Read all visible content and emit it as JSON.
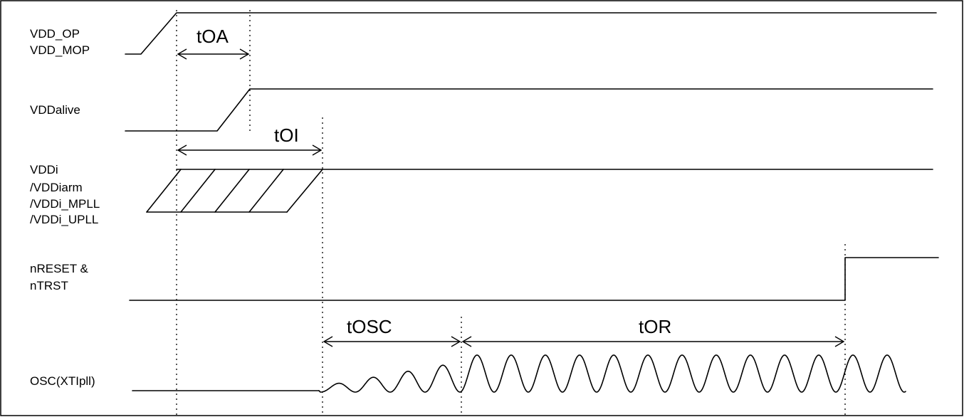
{
  "signals": {
    "vdd_op": {
      "lines": [
        "VDD_OP",
        "VDD_MOP"
      ]
    },
    "vddalive": {
      "lines": [
        "VDDalive"
      ]
    },
    "vddi": {
      "lines": [
        "VDDi",
        "/VDDiarm",
        "/VDDi_MPLL",
        "/VDDi_UPLL"
      ]
    },
    "nreset": {
      "lines": [
        "nRESET &",
        "nTRST"
      ]
    },
    "osc": {
      "lines": [
        "OSC(XTIpll)"
      ]
    }
  },
  "timings": {
    "toa": "tOA",
    "toi": "tOI",
    "tosc": "tOSC",
    "tor": "tOR"
  }
}
